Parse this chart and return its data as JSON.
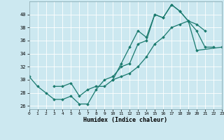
{
  "title": "",
  "xlabel": "Humidex (Indice chaleur)",
  "ylabel": "",
  "x_ticks": [
    0,
    1,
    2,
    3,
    4,
    5,
    6,
    7,
    8,
    9,
    10,
    11,
    12,
    13,
    14,
    15,
    16,
    17,
    18,
    19,
    20,
    21,
    22,
    23
  ],
  "xlim": [
    0,
    23
  ],
  "ylim": [
    25.5,
    42
  ],
  "y_ticks": [
    26,
    28,
    30,
    32,
    34,
    36,
    38,
    40
  ],
  "background_color": "#cce8f0",
  "grid_color": "#ffffff",
  "line_color": "#1a7a6e",
  "line1_x": [
    0,
    1,
    2,
    3,
    4,
    5,
    6,
    7,
    8,
    9,
    10,
    11,
    12,
    13,
    14,
    15,
    16,
    17,
    18,
    19,
    20,
    21,
    22
  ],
  "line1_y": [
    30.5,
    29.0,
    28.0,
    27.0,
    27.0,
    27.5,
    26.3,
    26.3,
    28.5,
    30.0,
    30.5,
    32.0,
    32.5,
    35.5,
    36.0,
    40.0,
    39.5,
    41.5,
    40.5,
    39.0,
    37.5,
    35.0,
    35.0
  ],
  "line2_x": [
    3,
    4,
    5,
    6,
    7,
    8,
    9,
    10,
    11,
    12,
    13,
    14,
    15,
    16,
    17,
    18,
    19,
    20,
    21
  ],
  "line2_y": [
    29.0,
    29.0,
    29.5,
    27.5,
    28.5,
    29.0,
    29.0,
    30.0,
    32.5,
    35.0,
    37.5,
    36.5,
    40.0,
    39.5,
    41.5,
    40.5,
    39.0,
    38.5,
    37.5
  ],
  "line3_x": [
    10,
    11,
    12,
    13,
    14,
    15,
    16,
    17,
    18,
    19,
    20,
    23
  ],
  "line3_y": [
    30.0,
    30.5,
    31.0,
    32.0,
    33.5,
    35.5,
    36.5,
    38.0,
    38.5,
    39.0,
    34.5,
    35.0
  ]
}
